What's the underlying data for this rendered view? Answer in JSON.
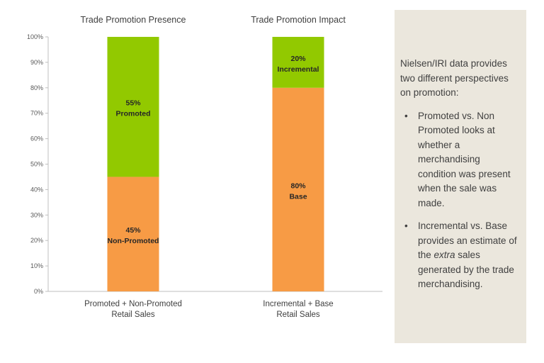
{
  "chart_data": {
    "type": "bar",
    "stacked": true,
    "ylim": [
      0,
      100
    ],
    "yticks": [
      "0%",
      "10%",
      "20%",
      "30%",
      "40%",
      "50%",
      "60%",
      "70%",
      "80%",
      "90%",
      "100%"
    ],
    "charts": [
      {
        "title": "Trade Promotion Presence",
        "category": [
          "Promoted + Non-Promoted",
          "Retail Sales"
        ],
        "segments": [
          {
            "value": 45,
            "pct": "45%",
            "label": "Non-Promoted",
            "color": "#f79b45"
          },
          {
            "value": 55,
            "pct": "55%",
            "label": "Promoted",
            "color": "#92c900"
          }
        ]
      },
      {
        "title": "Trade Promotion Impact",
        "category": [
          "Incremental + Base",
          "Retail Sales"
        ],
        "segments": [
          {
            "value": 80,
            "pct": "80%",
            "label": "Base",
            "color": "#f79b45"
          },
          {
            "value": 20,
            "pct": "20%",
            "label": "Incremental",
            "color": "#92c900"
          }
        ]
      }
    ]
  },
  "panel": {
    "intro": "Nielsen/IRI data provides two different perspectives on promotion:",
    "bullet_glyph": "•",
    "bullet1": "Promoted vs. Non Promoted looks at whether a merchandising condition was present when the sale was made.",
    "bullet2_before": "Incremental vs. Base provides an estimate of the ",
    "bullet2_em": "extra",
    "bullet2_after": " sales generated by the trade merchandising."
  }
}
